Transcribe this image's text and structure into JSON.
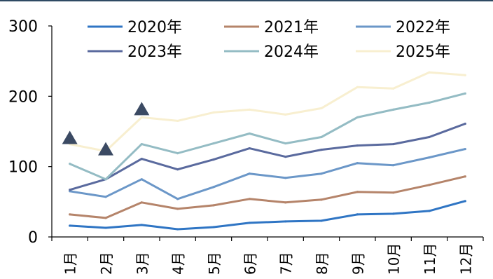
{
  "chart_data": {
    "type": "line",
    "title": "",
    "xlabel": "",
    "ylabel": "",
    "ylim": [
      0,
      300
    ],
    "yticks": [
      0,
      100,
      200,
      300
    ],
    "grid": false,
    "legend_position": "top",
    "categories": [
      "1月",
      "2月",
      "3月",
      "4月",
      "5月",
      "6月",
      "7月",
      "8月",
      "9月",
      "10月",
      "11月",
      "12月"
    ],
    "series": [
      {
        "name": "2020年",
        "color": "#2f75c4",
        "values": [
          16,
          13,
          17,
          11,
          14,
          20,
          22,
          23,
          32,
          33,
          37,
          51
        ]
      },
      {
        "name": "2021年",
        "color": "#b5846a",
        "values": [
          32,
          27,
          49,
          40,
          45,
          54,
          49,
          53,
          64,
          63,
          74,
          86
        ]
      },
      {
        "name": "2022年",
        "color": "#6b97c8",
        "values": [
          65,
          57,
          82,
          54,
          71,
          90,
          84,
          90,
          105,
          102,
          113,
          125
        ]
      },
      {
        "name": "2023年",
        "color": "#5a6a9e",
        "values": [
          67,
          82,
          111,
          96,
          110,
          126,
          114,
          124,
          130,
          132,
          142,
          161
        ]
      },
      {
        "name": "2024年",
        "color": "#94bcc4",
        "values": [
          104,
          82,
          132,
          119,
          133,
          147,
          133,
          142,
          170,
          181,
          191,
          204
        ]
      },
      {
        "name": "2025年",
        "color": "#f8efd0",
        "values": [
          132,
          122,
          170,
          165,
          177,
          181,
          174,
          183,
          213,
          211,
          234,
          230
        ]
      }
    ],
    "markers": [
      {
        "type": "triangle",
        "color": "#3b4a63",
        "x_index": 0,
        "y": 141
      },
      {
        "type": "triangle",
        "color": "#3b4a63",
        "x_index": 1,
        "y": 125
      },
      {
        "type": "triangle",
        "color": "#3b4a63",
        "x_index": 2,
        "y": 182
      }
    ]
  }
}
